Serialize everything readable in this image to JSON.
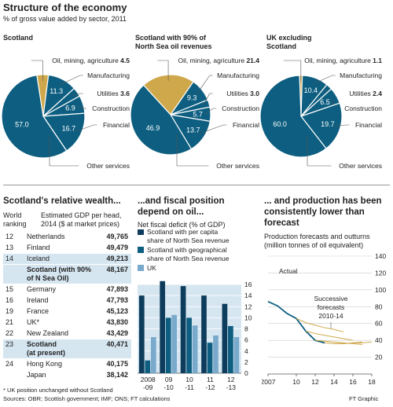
{
  "header": {
    "title": "Structure of the economy",
    "subtitle": "% of gross value added by sector, 2011"
  },
  "colors": {
    "dark_blue": "#0d5e80",
    "gold": "#cfa84b",
    "light_blue": "#79a9cb",
    "navy": "#0e3c5c",
    "highlight": "#d6e6f1"
  },
  "chart_data": [
    {
      "type": "pie",
      "title": "Scotland",
      "categories": [
        "Oil, mining, agriculture",
        "Manufacturing",
        "Utilities",
        "Construction",
        "Financial",
        "Other services"
      ],
      "values": [
        4.5,
        11.3,
        3.6,
        6.9,
        16.7,
        57.0
      ],
      "labels": [
        "Oil, mining, agriculture",
        "Manufacturing",
        "Utilities",
        "Construction",
        "Financial",
        "Other services"
      ],
      "value_labels": [
        "4.5",
        "11.3",
        "3.6",
        "6.9",
        "16.7",
        "57.0"
      ]
    },
    {
      "type": "pie",
      "title": "Scotland with 90% of North Sea oil revenues",
      "title_lines": [
        "Scotland with 90% of",
        "North Sea oil revenues"
      ],
      "categories": [
        "Oil, mining, agriculture",
        "Manufacturing",
        "Utilities",
        "Construction",
        "Financial",
        "Other services"
      ],
      "values": [
        21.4,
        9.3,
        3.0,
        5.7,
        13.7,
        46.9
      ],
      "labels": [
        "Oil, mining, agriculture",
        "Manufacturing",
        "Utilities",
        "Construction",
        "Financial",
        "Other services"
      ],
      "value_labels": [
        "21.4",
        "9.3",
        "3.0",
        "5.7",
        "13.7",
        "46.9"
      ]
    },
    {
      "type": "pie",
      "title": "UK excluding Scotland",
      "title_lines": [
        "UK excluding",
        "Scotland"
      ],
      "categories": [
        "Oil, mining, agriculture",
        "Manufacturing",
        "Utilities",
        "Construction",
        "Financial",
        "Other services"
      ],
      "values": [
        1.1,
        10.4,
        2.4,
        6.5,
        19.7,
        60.0
      ],
      "labels": [
        "Oil, mining, agriculture",
        "Manufacturing",
        "Utilities",
        "Construction",
        "Financial",
        "Other services"
      ],
      "value_labels": [
        "1.1",
        "10.4",
        "2.4",
        "6.5",
        "19.7",
        "60.0"
      ]
    },
    {
      "type": "table",
      "title": "Scotland's relative wealth...",
      "col_headers": [
        "World ranking",
        "Estimated GDP per head, 2014 ($ at market prices)"
      ],
      "col_header_lines": [
        [
          "World",
          "ranking"
        ],
        [
          "Estimated GDP per head,",
          "2014 ($ at market prices)"
        ]
      ],
      "rows": [
        {
          "rank": "12",
          "country": "Netherlands",
          "value": "49,765",
          "highlight": false
        },
        {
          "rank": "13",
          "country": "Finland",
          "value": "49,479",
          "highlight": false
        },
        {
          "rank": "14",
          "country": "Iceland",
          "value": "49,213",
          "highlight": true
        },
        {
          "rank": "",
          "country": "Scotland (with 90% of N Sea Oil)",
          "lines": [
            "Scotland (with 90%",
            "of N Sea Oil)"
          ],
          "value": "48,167",
          "highlight": true,
          "bold": true
        },
        {
          "rank": "15",
          "country": "Germany",
          "value": "47,893",
          "highlight": false
        },
        {
          "rank": "16",
          "country": "Ireland",
          "value": "47,793",
          "highlight": false
        },
        {
          "rank": "19",
          "country": "France",
          "value": "45,123",
          "highlight": false
        },
        {
          "rank": "21",
          "country": "UK*",
          "value": "43,830",
          "highlight": false
        },
        {
          "rank": "22",
          "country": "New Zealand",
          "value": "43,429",
          "highlight": false
        },
        {
          "rank": "23",
          "country": "Scotland (at present)",
          "lines": [
            "Scotland",
            "(at present)"
          ],
          "value": "40,471",
          "highlight": true,
          "bold": true
        },
        {
          "rank": "24",
          "country": "Hong Kong",
          "value": "40,175",
          "highlight": false
        },
        {
          "rank": "",
          "country": "Japan",
          "value": "38,142",
          "highlight": false
        }
      ]
    },
    {
      "type": "bar",
      "title": "...and fiscal position depend on oil...",
      "title_lines": [
        "...and fiscal position",
        "depend on oil..."
      ],
      "subtitle": "Net fiscal deficit (% of GDP)",
      "categories": [
        "2008 -09",
        "09 -10",
        "10 -11",
        "11 -12",
        "12 -13"
      ],
      "category_lines": [
        [
          "2008",
          "-09"
        ],
        [
          "09",
          "-10"
        ],
        [
          "10",
          "-11"
        ],
        [
          "11",
          "-12"
        ],
        [
          "12",
          "-13"
        ]
      ],
      "series": [
        {
          "name": "Scotland with per capita share of North Sea revenue",
          "values": [
            14.0,
            16.6,
            15.7,
            14.0,
            12.5
          ]
        },
        {
          "name": "Scotland with geographical share of North Sea revenue",
          "values": [
            2.3,
            10.0,
            10.0,
            5.5,
            8.5
          ]
        },
        {
          "name": "UK",
          "values": [
            6.5,
            10.5,
            8.6,
            6.8,
            6.5
          ]
        }
      ],
      "legend_lines": [
        [
          "Scotland with per capita",
          "share of North Sea revenue"
        ],
        [
          "Scotland with geographical",
          "share of North Sea revenue"
        ],
        [
          "UK"
        ]
      ],
      "ylim": [
        0,
        16
      ],
      "yticks": [
        0,
        2,
        4,
        6,
        8,
        10,
        12,
        14,
        16
      ]
    },
    {
      "type": "line",
      "title": "... and production has been consistently lower than forecast",
      "title_lines": [
        "... and production has been",
        "consistently lower than",
        "forecast"
      ],
      "subtitle": "Production forecasts and outturns (million tonnes of oil equivalent)",
      "subtitle_lines": [
        "Production forecasts and outturns",
        "(million tonnes of oil equivalent)"
      ],
      "xlim": [
        2007,
        2018
      ],
      "ylim": [
        0,
        140
      ],
      "xticks": [
        2007,
        2010,
        2012,
        2014,
        2016,
        2018
      ],
      "xtick_labels": [
        "2007",
        "10",
        "12",
        "14",
        "16",
        "18"
      ],
      "yticks": [
        20,
        40,
        60,
        80,
        100,
        120,
        140
      ],
      "series": [
        {
          "name": "Actual",
          "x": [
            2007,
            2008,
            2009,
            2010,
            2011,
            2012,
            2013
          ],
          "y": [
            86,
            81,
            72,
            66,
            51,
            40,
            37
          ]
        },
        {
          "name": "Successive forecasts 2010-14",
          "x": [
            2010,
            2011,
            2012,
            2013,
            2014,
            2015
          ],
          "y": [
            66,
            61,
            58,
            55,
            53,
            50
          ]
        },
        {
          "name": "",
          "x": [
            2011,
            2012,
            2013,
            2014,
            2015,
            2016
          ],
          "y": [
            51,
            48,
            46,
            44,
            42,
            40
          ]
        },
        {
          "name": "",
          "x": [
            2012,
            2013,
            2014,
            2015,
            2016,
            2017
          ],
          "y": [
            40,
            39,
            38,
            37,
            36,
            35
          ]
        },
        {
          "name": "",
          "x": [
            2013,
            2014,
            2015,
            2016,
            2017
          ],
          "y": [
            37,
            36,
            36,
            37,
            38
          ]
        },
        {
          "name": "",
          "x": [
            2014,
            2015,
            2016,
            2017,
            2018
          ],
          "y": [
            36,
            36,
            37,
            37,
            38
          ]
        }
      ],
      "annotations": [
        "Actual",
        "Successive forecasts 2010-14"
      ],
      "annotation_lines": [
        [
          "Actual"
        ],
        [
          "Successive",
          "forecasts",
          "2010-14"
        ]
      ]
    }
  ],
  "footer": {
    "note": "* UK position unchanged without Scotland",
    "sources": "Sources: OBR; Scottish government; IMF; ONS; FT calculations",
    "credit": "FT Graphic"
  }
}
